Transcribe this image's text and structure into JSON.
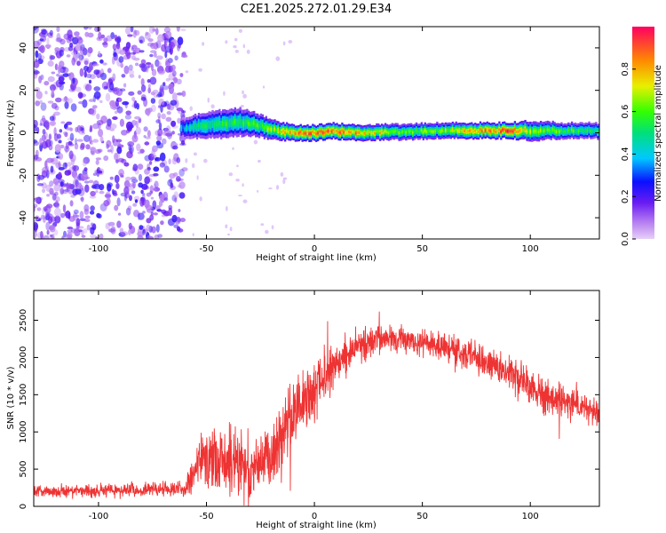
{
  "title": "C2E1.2025.272.01.29.E34",
  "chart_data": [
    {
      "type": "heatmap",
      "xlabel": "Height of straight line (km)",
      "ylabel": "Frequency (Hz)",
      "xlim": [
        -130,
        132
      ],
      "ylim": [
        -50,
        50
      ],
      "x_ticks": [
        -100,
        -50,
        0,
        50,
        100
      ],
      "y_ticks": [
        40,
        20,
        0,
        -20,
        -40
      ],
      "noise_region": {
        "x_from": -130,
        "x_to": -60,
        "mean_amplitude": 0.15
      },
      "signal_band": [
        {
          "x": -62,
          "freq": 2,
          "halfwidth": 2.5,
          "amplitude": 0.35
        },
        {
          "x": -55,
          "freq": 3,
          "halfwidth": 3,
          "amplitude": 0.45
        },
        {
          "x": -45,
          "freq": 4,
          "halfwidth": 3.5,
          "amplitude": 0.5
        },
        {
          "x": -35,
          "freq": 5,
          "halfwidth": 3.5,
          "amplitude": 0.55
        },
        {
          "x": -28,
          "freq": 4,
          "halfwidth": 3,
          "amplitude": 0.55
        },
        {
          "x": -20,
          "freq": 1.5,
          "halfwidth": 2.5,
          "amplitude": 0.6
        },
        {
          "x": -10,
          "freq": 0,
          "halfwidth": 2,
          "amplitude": 0.75
        },
        {
          "x": 0,
          "freq": 0,
          "halfwidth": 2,
          "amplitude": 0.8
        },
        {
          "x": 7,
          "freq": 1,
          "halfwidth": 2,
          "amplitude": 0.85
        },
        {
          "x": 20,
          "freq": 0,
          "halfwidth": 2,
          "amplitude": 0.75
        },
        {
          "x": 40,
          "freq": 0.5,
          "halfwidth": 2,
          "amplitude": 0.6
        },
        {
          "x": 60,
          "freq": 1,
          "halfwidth": 2,
          "amplitude": 0.6
        },
        {
          "x": 80,
          "freq": 1,
          "halfwidth": 2,
          "amplitude": 0.8
        },
        {
          "x": 90,
          "freq": 1,
          "halfwidth": 2,
          "amplitude": 0.9
        },
        {
          "x": 100,
          "freq": 1,
          "halfwidth": 2.5,
          "amplitude": 0.6
        },
        {
          "x": 115,
          "freq": 1,
          "halfwidth": 2,
          "amplitude": 0.55
        },
        {
          "x": 132,
          "freq": 1,
          "halfwidth": 2,
          "amplitude": 0.5
        }
      ],
      "colorbar": {
        "label": "Normalized spectral amplitude",
        "range": [
          0,
          1
        ],
        "ticks": [
          "0.0",
          "0.2",
          "0.4",
          "0.6",
          "0.8"
        ],
        "tick_values": [
          0,
          0.2,
          0.4,
          0.6,
          0.8
        ]
      }
    },
    {
      "type": "line",
      "xlabel": "Height of straight line (km)",
      "ylabel": "SNR (10 * v/v)",
      "xlim": [
        -130,
        132
      ],
      "ylim": [
        0,
        2900
      ],
      "x_ticks": [
        -100,
        -50,
        0,
        50,
        100
      ],
      "y_ticks": [
        0,
        500,
        1000,
        1500,
        2000,
        2500
      ],
      "series": [
        {
          "color": "#ee3333",
          "envelope_x": [
            -130,
            -60,
            -55,
            -50,
            -40,
            -30,
            -20,
            -10,
            0,
            10,
            20,
            30,
            40,
            50,
            60,
            70,
            80,
            90,
            100,
            110,
            120,
            132
          ],
          "envelope_mean": [
            200,
            230,
            500,
            700,
            550,
            500,
            650,
            1300,
            1550,
            1900,
            2150,
            2250,
            2250,
            2200,
            2150,
            2050,
            1950,
            1800,
            1600,
            1450,
            1350,
            1250
          ],
          "envelope_spread": [
            120,
            150,
            450,
            700,
            650,
            600,
            650,
            700,
            600,
            450,
            350,
            300,
            280,
            280,
            280,
            300,
            320,
            350,
            350,
            330,
            320,
            300
          ]
        }
      ]
    }
  ]
}
